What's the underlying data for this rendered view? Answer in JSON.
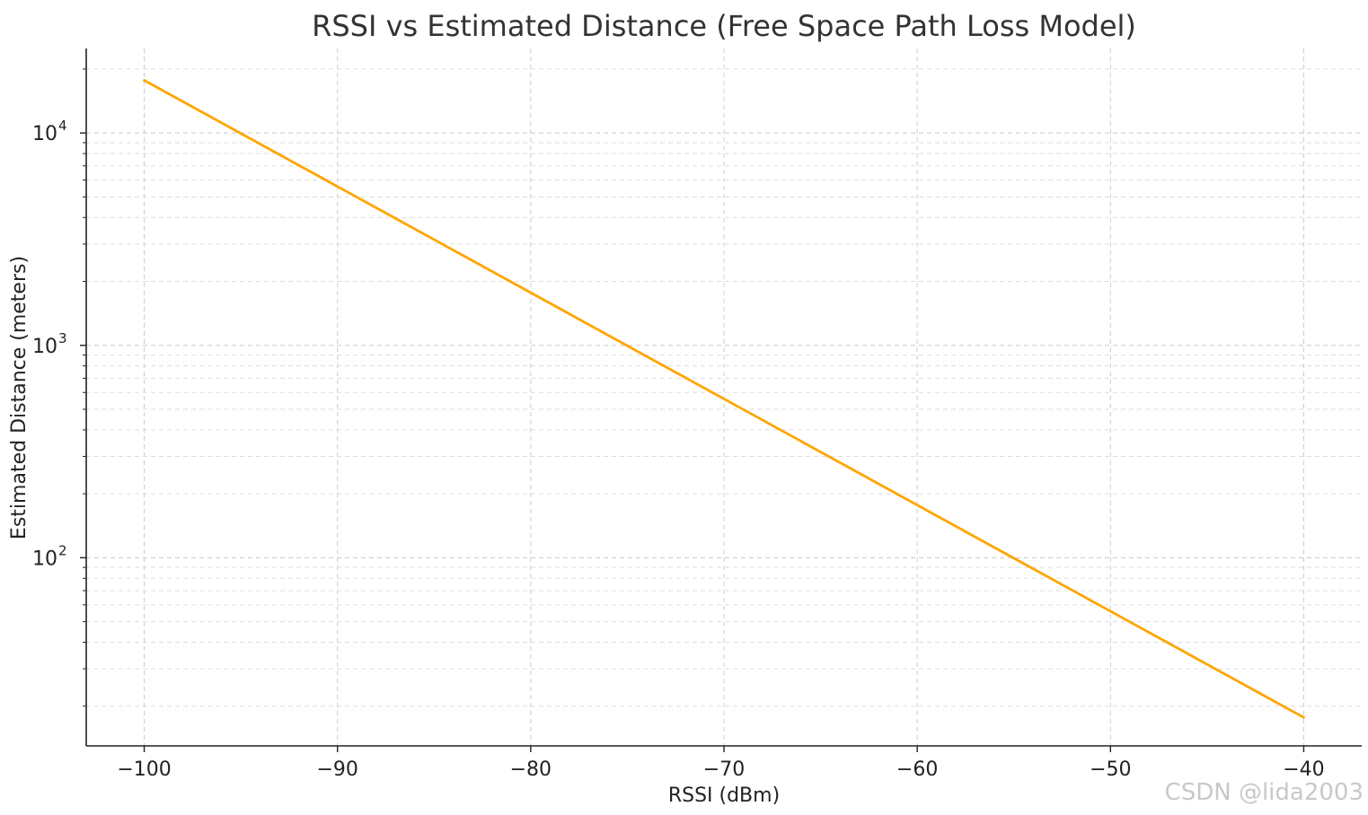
{
  "chart_data": {
    "type": "line",
    "title": "RSSI vs Estimated Distance (Free Space Path Loss Model)",
    "xlabel": "RSSI (dBm)",
    "ylabel": "Estimated Distance (meters)",
    "y_scale": "log",
    "xlim": [
      -103,
      -37
    ],
    "ylim": [
      13,
      25000
    ],
    "x_ticks": [
      -100,
      -90,
      -80,
      -70,
      -60,
      -50,
      -40
    ],
    "x_tick_labels": [
      "−100",
      "−90",
      "−80",
      "−70",
      "−60",
      "−50",
      "−40"
    ],
    "y_major_ticks": [
      {
        "value": 100,
        "base": "10",
        "exp": "2"
      },
      {
        "value": 1000,
        "base": "10",
        "exp": "3"
      },
      {
        "value": 10000,
        "base": "10",
        "exp": "4"
      }
    ],
    "grid": true,
    "series": [
      {
        "name": "Estimated Distance",
        "color": "#FFA500",
        "x": [
          -100,
          -40
        ],
        "y": [
          17700,
          17.7
        ]
      }
    ]
  },
  "watermark": "CSDN @lida2003"
}
